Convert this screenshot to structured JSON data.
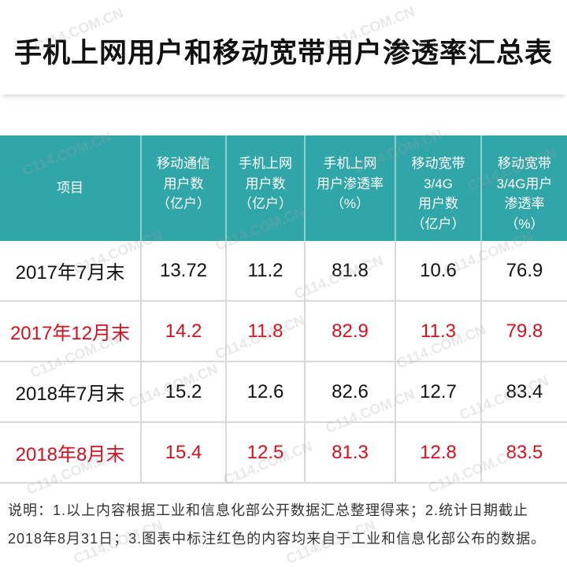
{
  "title": "手机上网用户和移动宽带用户渗透率汇总表",
  "watermark": "C114.COM.CN",
  "colors": {
    "header_bg": "#31a6a9",
    "highlight": "#d5101e",
    "text": "#111111"
  },
  "table": {
    "header": [
      {
        "lines": [
          "项目"
        ]
      },
      {
        "lines": [
          "移动通信",
          "用户数",
          "（亿户）"
        ]
      },
      {
        "lines": [
          "手机上网",
          "用户数",
          "（亿户）"
        ]
      },
      {
        "lines": [
          "手机上网",
          "用户渗透率",
          "（%）"
        ]
      },
      {
        "lines": [
          "移动宽带",
          "3/4G",
          "用户数",
          "（亿户）"
        ]
      },
      {
        "lines": [
          "移动宽带",
          "3/4G用户",
          "渗透率",
          "（%）"
        ]
      }
    ],
    "rows": [
      {
        "label": "2017年7月末",
        "highlight": false,
        "values": [
          13.72,
          11.2,
          81.8,
          10.6,
          76.9
        ]
      },
      {
        "label": "2017年12月末",
        "highlight": true,
        "values": [
          14.2,
          11.8,
          82.9,
          11.3,
          79.8
        ]
      },
      {
        "label": "2018年7月末",
        "highlight": false,
        "values": [
          15.2,
          12.6,
          82.6,
          12.7,
          83.4
        ]
      },
      {
        "label": "2018年8月末",
        "highlight": true,
        "values": [
          15.4,
          12.5,
          81.3,
          12.8,
          83.5
        ]
      }
    ]
  },
  "note": {
    "lines": [
      "说明：1.以上内容根据工业和信息化部公开数据汇总整理得来；2.统计日期截止",
      "2018年8月31日；3.图表中标注红色的内容均来自于工业和信息化部公布的数据。"
    ]
  }
}
